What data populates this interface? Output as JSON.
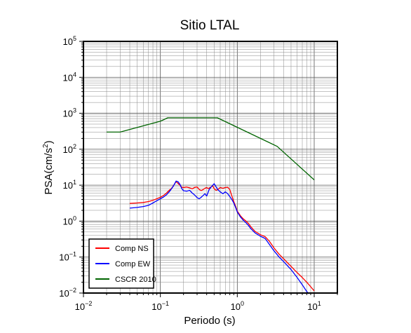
{
  "chart_data": {
    "type": "line",
    "title": "Sitio LTAL",
    "xlabel": "Periodo (s)",
    "ylabel_base": "PSA(cm/s",
    "ylabel_exp": "2",
    "ylabel_close": ")",
    "x_scale": "log",
    "y_scale": "log",
    "xlim": [
      0.01,
      20
    ],
    "ylim": [
      0.01,
      100000
    ],
    "grid": true,
    "legend_position": "bottom-left",
    "x_ticks": [
      {
        "base": "10",
        "exp": "−2",
        "value": 0.01
      },
      {
        "base": "10",
        "exp": "−1",
        "value": 0.1
      },
      {
        "base": "10",
        "exp": "0",
        "value": 1
      },
      {
        "base": "10",
        "exp": "1",
        "value": 10
      }
    ],
    "y_ticks": [
      {
        "base": "10",
        "exp": "−2",
        "value": 0.01
      },
      {
        "base": "10",
        "exp": "−1",
        "value": 0.1
      },
      {
        "base": "10",
        "exp": "0",
        "value": 1
      },
      {
        "base": "10",
        "exp": "1",
        "value": 10
      },
      {
        "base": "10",
        "exp": "2",
        "value": 100
      },
      {
        "base": "10",
        "exp": "3",
        "value": 1000
      },
      {
        "base": "10",
        "exp": "4",
        "value": 10000
      },
      {
        "base": "10",
        "exp": "5",
        "value": 100000
      }
    ],
    "series": [
      {
        "name": "Comp NS",
        "color": "#ff0000",
        "points": [
          [
            0.04,
            3.1
          ],
          [
            0.05,
            3.2
          ],
          [
            0.06,
            3.3
          ],
          [
            0.07,
            3.5
          ],
          [
            0.08,
            3.8
          ],
          [
            0.09,
            4.2
          ],
          [
            0.1,
            4.6
          ],
          [
            0.11,
            5.2
          ],
          [
            0.12,
            6.0
          ],
          [
            0.13,
            7.2
          ],
          [
            0.14,
            8.2
          ],
          [
            0.15,
            10.2
          ],
          [
            0.16,
            12.5
          ],
          [
            0.17,
            11.2
          ],
          [
            0.18,
            9.8
          ],
          [
            0.19,
            8.8
          ],
          [
            0.2,
            8.6
          ],
          [
            0.22,
            8.9
          ],
          [
            0.24,
            8.4
          ],
          [
            0.26,
            7.9
          ],
          [
            0.28,
            8.7
          ],
          [
            0.3,
            8.9
          ],
          [
            0.32,
            7.6
          ],
          [
            0.34,
            7.1
          ],
          [
            0.36,
            7.6
          ],
          [
            0.38,
            8.2
          ],
          [
            0.4,
            8.6
          ],
          [
            0.42,
            8.0
          ],
          [
            0.45,
            8.8
          ],
          [
            0.48,
            9.6
          ],
          [
            0.5,
            8.0
          ],
          [
            0.53,
            7.2
          ],
          [
            0.56,
            7.6
          ],
          [
            0.6,
            8.6
          ],
          [
            0.65,
            8.2
          ],
          [
            0.7,
            8.6
          ],
          [
            0.75,
            8.8
          ],
          [
            0.8,
            7.5
          ],
          [
            0.85,
            5.0
          ],
          [
            0.9,
            3.5
          ],
          [
            0.95,
            2.6
          ],
          [
            1.0,
            1.9
          ],
          [
            1.1,
            1.4
          ],
          [
            1.2,
            1.15
          ],
          [
            1.3,
            1.0
          ],
          [
            1.4,
            0.85
          ],
          [
            1.5,
            0.7
          ],
          [
            1.7,
            0.52
          ],
          [
            2.0,
            0.42
          ],
          [
            2.3,
            0.37
          ],
          [
            2.6,
            0.28
          ],
          [
            3.0,
            0.18
          ],
          [
            3.5,
            0.12
          ],
          [
            4.0,
            0.09
          ],
          [
            5.0,
            0.055
          ],
          [
            6.0,
            0.037
          ],
          [
            7.0,
            0.027
          ],
          [
            8.0,
            0.02
          ],
          [
            9.0,
            0.015
          ],
          [
            10.0,
            0.0115
          ]
        ]
      },
      {
        "name": "Comp EW",
        "color": "#0000ff",
        "points": [
          [
            0.04,
            2.3
          ],
          [
            0.05,
            2.4
          ],
          [
            0.06,
            2.55
          ],
          [
            0.07,
            2.75
          ],
          [
            0.08,
            3.2
          ],
          [
            0.09,
            3.7
          ],
          [
            0.1,
            4.2
          ],
          [
            0.11,
            4.7
          ],
          [
            0.12,
            5.4
          ],
          [
            0.13,
            6.5
          ],
          [
            0.14,
            8.0
          ],
          [
            0.15,
            10.0
          ],
          [
            0.16,
            13.0
          ],
          [
            0.17,
            12.5
          ],
          [
            0.18,
            10.5
          ],
          [
            0.19,
            8.0
          ],
          [
            0.2,
            7.0
          ],
          [
            0.22,
            6.8
          ],
          [
            0.24,
            7.2
          ],
          [
            0.26,
            6.0
          ],
          [
            0.28,
            5.3
          ],
          [
            0.3,
            4.5
          ],
          [
            0.32,
            4.2
          ],
          [
            0.34,
            4.6
          ],
          [
            0.36,
            5.2
          ],
          [
            0.38,
            5.8
          ],
          [
            0.4,
            5.0
          ],
          [
            0.43,
            7.5
          ],
          [
            0.46,
            9.0
          ],
          [
            0.5,
            11.0
          ],
          [
            0.53,
            9.0
          ],
          [
            0.56,
            7.5
          ],
          [
            0.6,
            6.5
          ],
          [
            0.65,
            5.8
          ],
          [
            0.7,
            6.5
          ],
          [
            0.75,
            5.8
          ],
          [
            0.8,
            4.8
          ],
          [
            0.85,
            4.0
          ],
          [
            0.9,
            3.2
          ],
          [
            0.95,
            2.4
          ],
          [
            1.0,
            1.8
          ],
          [
            1.1,
            1.3
          ],
          [
            1.2,
            1.05
          ],
          [
            1.3,
            0.9
          ],
          [
            1.4,
            0.75
          ],
          [
            1.5,
            0.62
          ],
          [
            1.7,
            0.47
          ],
          [
            2.0,
            0.38
          ],
          [
            2.3,
            0.33
          ],
          [
            2.6,
            0.23
          ],
          [
            3.0,
            0.15
          ],
          [
            3.5,
            0.1
          ],
          [
            4.0,
            0.075
          ],
          [
            5.0,
            0.045
          ],
          [
            6.0,
            0.027
          ],
          [
            7.0,
            0.017
          ],
          [
            8.0,
            0.011
          ],
          [
            8.5,
            0.0095
          ]
        ]
      },
      {
        "name": "CSCR 2010",
        "color": "#006400",
        "points": [
          [
            0.02,
            300
          ],
          [
            0.03,
            300
          ],
          [
            0.1,
            600
          ],
          [
            0.125,
            750
          ],
          [
            0.55,
            750
          ],
          [
            3.3,
            120
          ],
          [
            10.0,
            14
          ]
        ]
      }
    ]
  }
}
